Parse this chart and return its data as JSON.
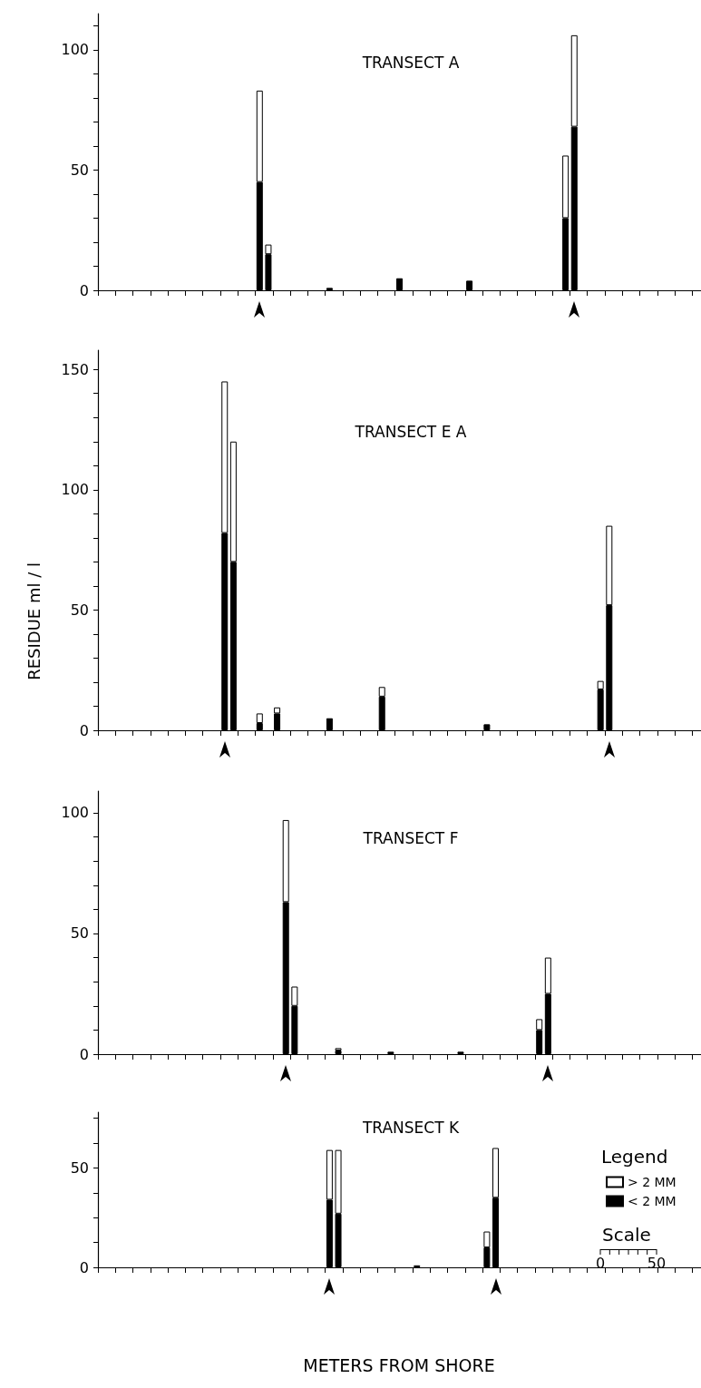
{
  "chart_data": [
    {
      "type": "bar",
      "title": "TRANSECT A",
      "stacked": true,
      "tick_labels": "y",
      "categories": [
        null,
        null,
        null,
        null,
        null,
        null,
        null,
        null,
        null,
        null,
        null,
        null,
        null,
        null,
        null,
        null,
        null,
        null,
        null,
        null,
        null,
        null,
        null,
        null,
        null,
        null,
        null,
        null,
        null,
        null,
        null,
        null,
        null,
        null,
        null,
        null,
        null,
        null,
        null,
        null,
        null,
        null,
        null,
        null,
        null,
        null,
        null,
        null,
        null,
        null,
        null,
        null,
        null,
        null,
        null,
        null,
        null,
        null,
        null,
        null,
        null,
        null,
        null,
        null,
        null,
        null,
        null,
        null,
        null
      ],
      "ylim": [
        0,
        115
      ],
      "yticks": [
        0,
        {
          "value": 10,
          "label": null
        },
        {
          "value": 20,
          "label": null
        },
        {
          "value": 30,
          "label": null
        },
        {
          "value": 40,
          "label": null
        },
        50,
        {
          "value": 60,
          "label": null
        },
        {
          "value": 70,
          "label": null
        },
        {
          "value": 80,
          "label": null
        },
        {
          "value": 90,
          "label": null
        },
        100,
        {
          "value": 110,
          "label": null
        }
      ],
      "series": [
        {
          "color": "#000000",
          "values": [
            null,
            null,
            null,
            null,
            null,
            null,
            null,
            null,
            null,
            null,
            null,
            null,
            null,
            null,
            null,
            null,
            null,
            null,
            45,
            15,
            null,
            null,
            null,
            null,
            null,
            null,
            1,
            null,
            null,
            null,
            null,
            null,
            null,
            null,
            5,
            null,
            null,
            null,
            null,
            null,
            null,
            null,
            4,
            null,
            null,
            null,
            null,
            null,
            null,
            null,
            null,
            null,
            null,
            30,
            68,
            null,
            null,
            null,
            null,
            null,
            null,
            null,
            null,
            null,
            null,
            null,
            null,
            null,
            null
          ]
        },
        {
          "color": "#ffffff",
          "values": [
            null,
            null,
            null,
            null,
            null,
            null,
            null,
            null,
            null,
            null,
            null,
            null,
            null,
            null,
            null,
            null,
            null,
            null,
            38,
            4,
            null,
            null,
            null,
            null,
            null,
            null,
            null,
            null,
            null,
            null,
            null,
            null,
            null,
            null,
            null,
            null,
            null,
            null,
            null,
            null,
            null,
            null,
            null,
            null,
            null,
            null,
            null,
            null,
            null,
            null,
            null,
            null,
            null,
            26,
            38,
            null,
            null,
            null,
            null,
            null,
            null,
            null,
            null,
            null,
            null,
            null,
            null,
            null,
            null
          ]
        }
      ]
    },
    {
      "type": "bar",
      "title": "TRANSECT E A",
      "ylabel": "RESIDUE ml / l",
      "stacked": true,
      "tick_labels": "y",
      "categories": [
        null,
        null,
        null,
        null,
        null,
        null,
        null,
        null,
        null,
        null,
        null,
        null,
        null,
        null,
        null,
        null,
        null,
        null,
        null,
        null,
        null,
        null,
        null,
        null,
        null,
        null,
        null,
        null,
        null,
        null,
        null,
        null,
        null,
        null,
        null,
        null,
        null,
        null,
        null,
        null,
        null,
        null,
        null,
        null,
        null,
        null,
        null,
        null,
        null,
        null,
        null,
        null,
        null,
        null,
        null,
        null,
        null,
        null,
        null,
        null,
        null,
        null,
        null,
        null,
        null,
        null,
        null,
        null,
        null
      ],
      "ylim": [
        0,
        158
      ],
      "yticks": [
        0,
        {
          "value": 10,
          "label": null
        },
        {
          "value": 20,
          "label": null
        },
        {
          "value": 30,
          "label": null
        },
        {
          "value": 40,
          "label": null
        },
        50,
        {
          "value": 60,
          "label": null
        },
        {
          "value": 70,
          "label": null
        },
        {
          "value": 80,
          "label": null
        },
        {
          "value": 90,
          "label": null
        },
        100,
        {
          "value": 110,
          "label": null
        },
        {
          "value": 120,
          "label": null
        },
        {
          "value": 130,
          "label": null
        },
        {
          "value": 140,
          "label": null
        },
        150
      ],
      "series": [
        {
          "color": "#000000",
          "values": [
            null,
            null,
            null,
            null,
            null,
            null,
            null,
            null,
            null,
            null,
            null,
            null,
            null,
            null,
            82,
            70,
            null,
            null,
            3,
            null,
            7,
            null,
            null,
            null,
            null,
            null,
            5,
            null,
            null,
            null,
            null,
            null,
            14,
            null,
            null,
            null,
            null,
            null,
            null,
            null,
            null,
            null,
            null,
            null,
            2.5,
            null,
            null,
            null,
            null,
            null,
            null,
            null,
            null,
            null,
            null,
            null,
            null,
            17,
            52,
            null,
            null,
            null,
            null,
            null,
            null,
            null,
            null,
            null,
            null
          ]
        },
        {
          "color": "#ffffff",
          "values": [
            null,
            null,
            null,
            null,
            null,
            null,
            null,
            null,
            null,
            null,
            null,
            null,
            null,
            null,
            63,
            50,
            null,
            null,
            4,
            null,
            2.5,
            null,
            null,
            null,
            null,
            null,
            null,
            null,
            null,
            null,
            null,
            null,
            4,
            null,
            null,
            null,
            null,
            null,
            null,
            null,
            null,
            null,
            null,
            null,
            null,
            null,
            null,
            null,
            null,
            null,
            null,
            null,
            null,
            null,
            null,
            null,
            null,
            3.5,
            33,
            null,
            null,
            null,
            null,
            null,
            null,
            null,
            null,
            null,
            null
          ]
        }
      ]
    },
    {
      "type": "bar",
      "title": "TRANSECT F",
      "stacked": true,
      "tick_labels": "y",
      "categories": [
        null,
        null,
        null,
        null,
        null,
        null,
        null,
        null,
        null,
        null,
        null,
        null,
        null,
        null,
        null,
        null,
        null,
        null,
        null,
        null,
        null,
        null,
        null,
        null,
        null,
        null,
        null,
        null,
        null,
        null,
        null,
        null,
        null,
        null,
        null,
        null,
        null,
        null,
        null,
        null,
        null,
        null,
        null,
        null,
        null,
        null,
        null,
        null,
        null,
        null,
        null,
        null,
        null,
        null,
        null,
        null,
        null,
        null,
        null,
        null,
        null,
        null,
        null,
        null,
        null,
        null,
        null,
        null,
        null
      ],
      "ylim": [
        0,
        109
      ],
      "yticks": [
        0,
        {
          "value": 10,
          "label": null
        },
        {
          "value": 20,
          "label": null
        },
        {
          "value": 30,
          "label": null
        },
        {
          "value": 40,
          "label": null
        },
        50,
        {
          "value": 60,
          "label": null
        },
        {
          "value": 70,
          "label": null
        },
        {
          "value": 80,
          "label": null
        },
        {
          "value": 90,
          "label": null
        },
        100
      ],
      "series": [
        {
          "color": "#000000",
          "values": [
            null,
            null,
            null,
            null,
            null,
            null,
            null,
            null,
            null,
            null,
            null,
            null,
            null,
            null,
            null,
            null,
            null,
            null,
            null,
            null,
            null,
            63,
            20,
            null,
            null,
            null,
            null,
            1.5,
            null,
            null,
            null,
            null,
            null,
            1,
            null,
            null,
            null,
            null,
            null,
            null,
            null,
            1,
            null,
            null,
            null,
            null,
            null,
            null,
            null,
            null,
            10,
            25,
            null,
            null,
            null,
            null,
            null,
            null,
            null,
            null,
            null,
            null,
            null,
            null,
            null,
            null,
            null,
            null,
            null
          ]
        },
        {
          "color": "#ffffff",
          "values": [
            null,
            null,
            null,
            null,
            null,
            null,
            null,
            null,
            null,
            null,
            null,
            null,
            null,
            null,
            null,
            null,
            null,
            null,
            null,
            null,
            null,
            34,
            8,
            null,
            null,
            null,
            null,
            1,
            null,
            null,
            null,
            null,
            null,
            null,
            null,
            null,
            null,
            null,
            null,
            null,
            null,
            null,
            null,
            null,
            null,
            null,
            null,
            null,
            null,
            null,
            4.5,
            15,
            null,
            null,
            null,
            null,
            null,
            null,
            null,
            null,
            null,
            null,
            null,
            null,
            null,
            null,
            null,
            null,
            null
          ]
        }
      ]
    },
    {
      "type": "bar",
      "title": "TRANSECT K",
      "xlabel": "METERS FROM SHORE",
      "stacked": true,
      "tick_labels": "y",
      "legend": "right",
      "legend_title": "Legend",
      "annotations": [
        "Scale",
        "0",
        "50"
      ],
      "categories": [
        null,
        null,
        null,
        null,
        null,
        null,
        null,
        null,
        null,
        null,
        null,
        null,
        null,
        null,
        null,
        null,
        null,
        null,
        null,
        null,
        null,
        null,
        null,
        null,
        null,
        null,
        null,
        null,
        null,
        null,
        null,
        null,
        null,
        null,
        null,
        null,
        null,
        null,
        null,
        null,
        null,
        null,
        null,
        null,
        null,
        null,
        null,
        null,
        null,
        null,
        null,
        null,
        null,
        null,
        null,
        null,
        null,
        null,
        null,
        null,
        null,
        null,
        null,
        null,
        null,
        null,
        null,
        null,
        null
      ],
      "ylim": [
        0,
        78
      ],
      "yticks": [
        0,
        {
          "value": 12.5,
          "label": null
        },
        {
          "value": 25,
          "label": null
        },
        {
          "value": 37.5,
          "label": null
        },
        50,
        {
          "value": 62.5,
          "label": null
        },
        {
          "value": 75,
          "label": null
        }
      ],
      "series": [
        {
          "name": "< 2 MM",
          "color": "#000000",
          "values": [
            null,
            null,
            null,
            null,
            null,
            null,
            null,
            null,
            null,
            null,
            null,
            null,
            null,
            null,
            null,
            null,
            null,
            null,
            null,
            null,
            null,
            null,
            null,
            null,
            null,
            null,
            34,
            27,
            null,
            null,
            null,
            null,
            null,
            null,
            null,
            null,
            1,
            null,
            null,
            null,
            null,
            null,
            null,
            null,
            10,
            35,
            null,
            null,
            null,
            null,
            null,
            null,
            null,
            null,
            null,
            null,
            null,
            null,
            null,
            null,
            null,
            null,
            null,
            null,
            null,
            null,
            null,
            null,
            null
          ]
        },
        {
          "name": "> 2 MM",
          "color": "#ffffff",
          "values": [
            null,
            null,
            null,
            null,
            null,
            null,
            null,
            null,
            null,
            null,
            null,
            null,
            null,
            null,
            null,
            null,
            null,
            null,
            null,
            null,
            null,
            null,
            null,
            null,
            null,
            null,
            25,
            32,
            null,
            null,
            null,
            null,
            null,
            null,
            null,
            null,
            null,
            null,
            null,
            null,
            null,
            null,
            null,
            null,
            8,
            25,
            null,
            null,
            null,
            null,
            null,
            null,
            null,
            null,
            null,
            null,
            null,
            null,
            null,
            null,
            null,
            null,
            null,
            null,
            null,
            null,
            null,
            null,
            null
          ]
        }
      ]
    }
  ]
}
